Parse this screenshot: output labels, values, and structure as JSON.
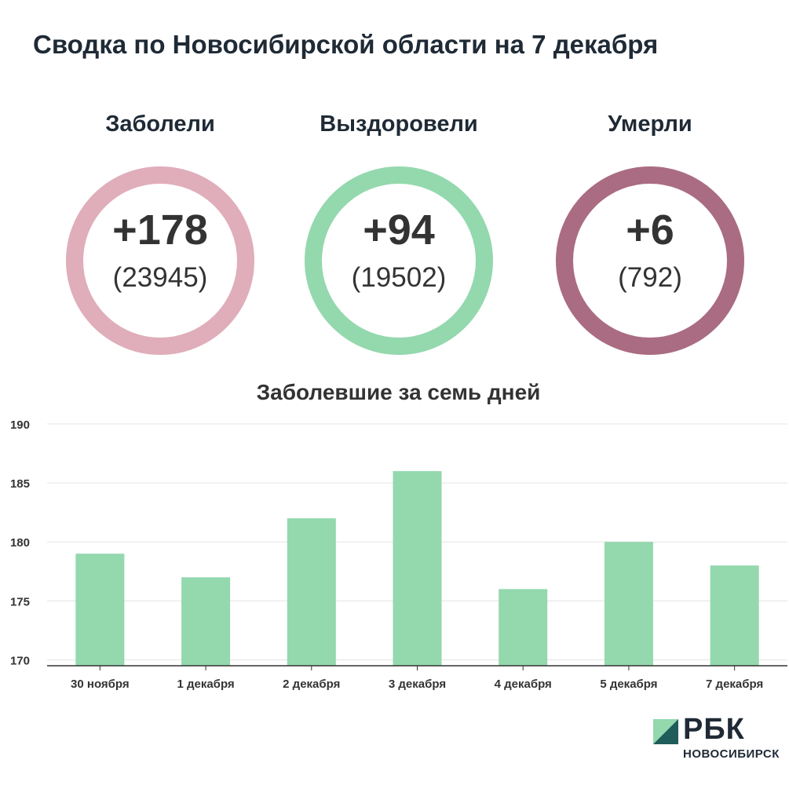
{
  "title": "Сводка по Новосибирской области на 7 декабря",
  "stats": [
    {
      "label": "Заболели",
      "delta": "+178",
      "total": "(23945)",
      "color": "#e0adbb"
    },
    {
      "label": "Выздоровели",
      "delta": "+94",
      "total": "(19502)",
      "color": "#94d8ae"
    },
    {
      "label": "Умерли",
      "delta": "+6",
      "total": "(792)",
      "color": "#aa6c82"
    }
  ],
  "colors": {
    "bar": "#94d8ae",
    "grid": "#e3e3e3",
    "axis": "#333333",
    "text": "#1f2a36"
  },
  "chart_data": {
    "type": "bar",
    "title": "Заболевшие за семь дней",
    "categories": [
      "30 ноября",
      "1 декабря",
      "2 декабря",
      "3 декабря",
      "4 декабря",
      "5 декабря",
      "7 декабря"
    ],
    "values": [
      179,
      177,
      182,
      186,
      176,
      180,
      178
    ],
    "ylim": [
      169.5,
      190
    ],
    "yticks": [
      170,
      175,
      180,
      185,
      190
    ],
    "grid": true,
    "xlabel": "",
    "ylabel": ""
  },
  "logo": {
    "name": "РБК",
    "city": "НОВОСИБИРСК"
  }
}
